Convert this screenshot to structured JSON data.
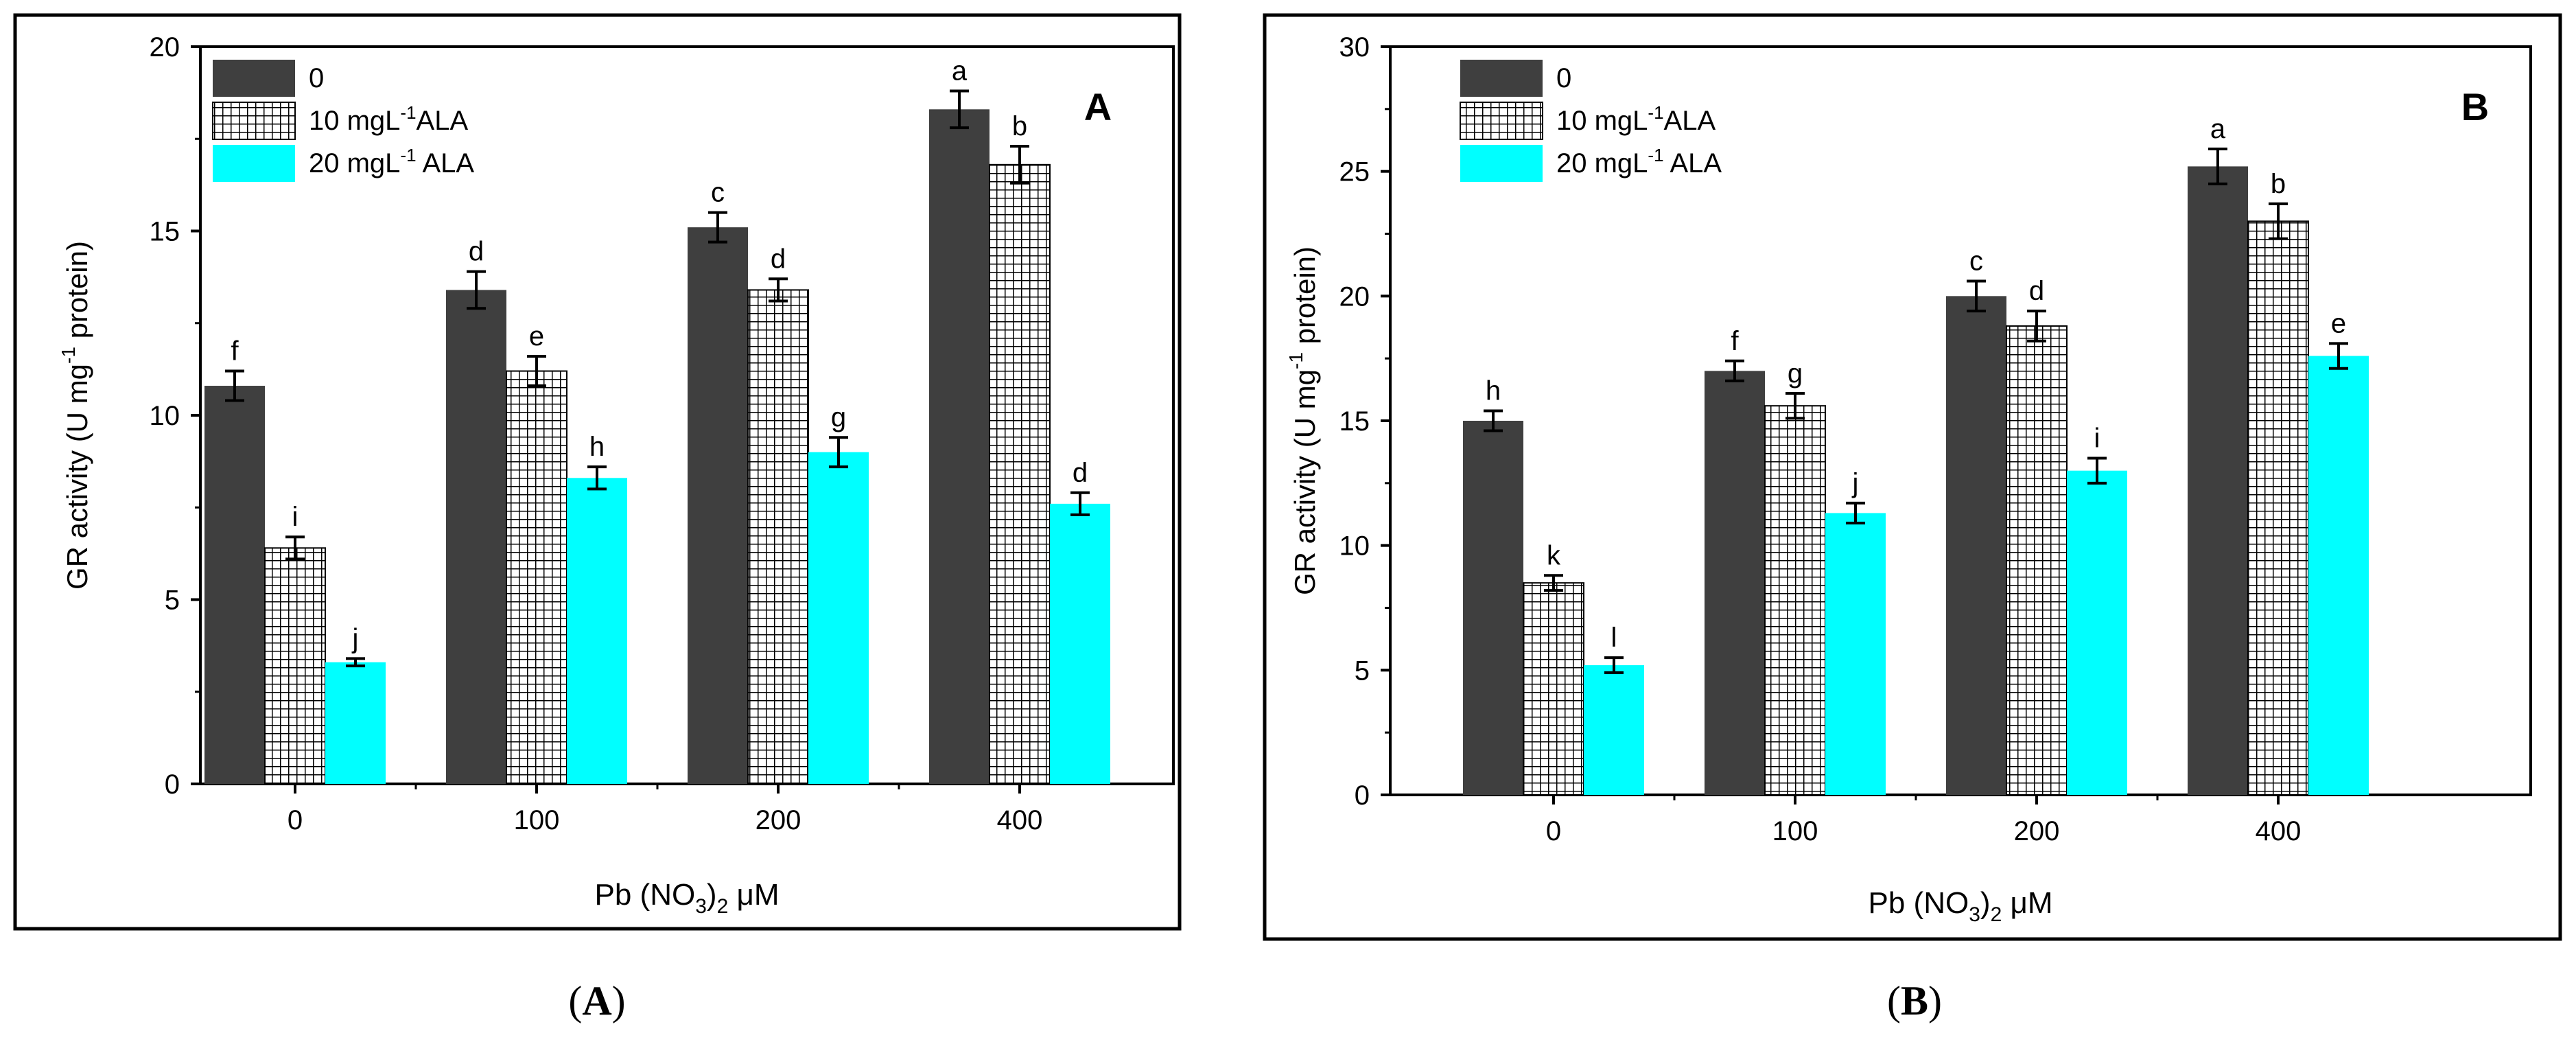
{
  "colors": {
    "dark": "#3f3f3f",
    "cyan": "#00ffff",
    "panel_letter": "#ff0000",
    "hatch_bg": "#ffffff",
    "hatch_line": "#000000"
  },
  "chart_data": [
    {
      "type": "bar",
      "panel_letter": "A",
      "caption": {
        "open": "(",
        "letter": "A",
        "close": ")"
      },
      "xlabel": {
        "pre": "Pb (NO",
        "sub": "3",
        "mid": ")",
        "sub2": "2",
        "post": " μM"
      },
      "ylabel": {
        "pre": "GR activity (U mg",
        "sup": "-1",
        "post": " protein)"
      },
      "ylim": [
        0,
        20
      ],
      "yticks": [
        "0",
        "5",
        "10",
        "15",
        "20"
      ],
      "categories": [
        "0",
        "100",
        "200",
        "400"
      ],
      "legend": [
        {
          "label": "0",
          "sup": "",
          "post": ""
        },
        {
          "label": "10 mgL",
          "sup": "-1",
          "post": "ALA"
        },
        {
          "label": "20 mgL",
          "sup": "-1",
          "post": " ALA"
        }
      ],
      "series": [
        {
          "name": "0",
          "style": "dark",
          "values": [
            10.8,
            13.4,
            15.1,
            18.3
          ],
          "errors": [
            0.4,
            0.5,
            0.4,
            0.5
          ],
          "letters": [
            "f",
            "d",
            "c",
            "a"
          ]
        },
        {
          "name": "10 mgL-1ALA",
          "style": "hatch",
          "values": [
            6.4,
            11.2,
            13.4,
            16.8
          ],
          "errors": [
            0.3,
            0.4,
            0.3,
            0.5
          ],
          "letters": [
            "i",
            "e",
            "d",
            "b"
          ]
        },
        {
          "name": "20 mgL-1 ALA",
          "style": "cyan",
          "values": [
            3.3,
            8.3,
            9.0,
            7.6
          ],
          "errors": [
            0.1,
            0.3,
            0.4,
            0.3
          ],
          "letters": [
            "j",
            "h",
            "g",
            "d"
          ]
        }
      ]
    },
    {
      "type": "bar",
      "panel_letter": "B",
      "caption": {
        "open": "(",
        "letter": "B",
        "close": ")"
      },
      "xlabel": {
        "pre": "Pb (NO",
        "sub": "3",
        "mid": ")",
        "sub2": "2",
        "post": " μM"
      },
      "ylabel": {
        "pre": "GR activity (U mg",
        "sup": "-1",
        "post": " protein)"
      },
      "ylim": [
        0,
        30
      ],
      "yticks": [
        "0",
        "5",
        "10",
        "15",
        "20",
        "25",
        "30"
      ],
      "categories": [
        "0",
        "100",
        "200",
        "400"
      ],
      "legend": [
        {
          "label": "0",
          "sup": "",
          "post": ""
        },
        {
          "label": "10 mgL",
          "sup": "-1",
          "post": "ALA"
        },
        {
          "label": "20 mgL",
          "sup": "-1",
          "post": " ALA"
        }
      ],
      "series": [
        {
          "name": "0",
          "style": "dark",
          "values": [
            15.0,
            17.0,
            20.0,
            25.2
          ],
          "errors": [
            0.4,
            0.4,
            0.6,
            0.7
          ],
          "letters": [
            "h",
            "f",
            "c",
            "a"
          ]
        },
        {
          "name": "10 mgL-1ALA",
          "style": "hatch",
          "values": [
            8.5,
            15.6,
            18.8,
            23.0
          ],
          "errors": [
            0.3,
            0.5,
            0.6,
            0.7
          ],
          "letters": [
            "k",
            "g",
            "d",
            "b"
          ]
        },
        {
          "name": "20 mgL-1 ALA",
          "style": "cyan",
          "values": [
            5.2,
            11.3,
            13.0,
            17.6
          ],
          "errors": [
            0.3,
            0.4,
            0.5,
            0.5
          ],
          "letters": [
            "l",
            "j",
            "i",
            "e"
          ]
        }
      ]
    }
  ]
}
